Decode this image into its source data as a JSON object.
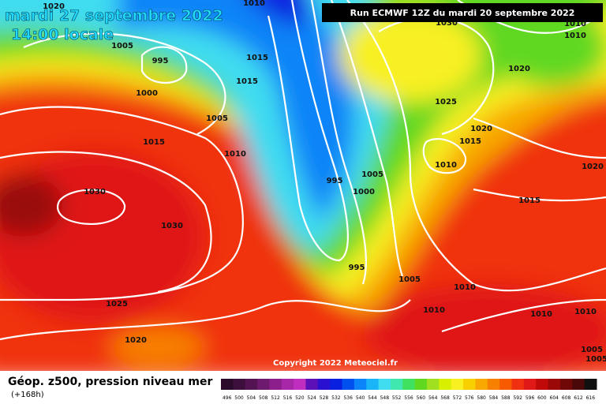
{
  "header": {
    "date": "mardi 27 septembre 2022",
    "time": "14:00 locale",
    "run": "Run ECMWF 12Z du mardi 20 septembre 2022"
  },
  "copyright": "Copyright 2022 Meteociel.fr",
  "footer": {
    "title": "Géop. z500, pression niveau mer",
    "lead": "(+168h)"
  },
  "isobar_labels": [
    "1020",
    "1010",
    "1005",
    "995",
    "1015",
    "1015",
    "1000",
    "1005",
    "1015",
    "1010",
    "1030",
    "1030",
    "1025",
    "1020",
    "995",
    "1000",
    "1005",
    "995",
    "1005",
    "1010",
    "1010",
    "1030",
    "1010",
    "1010",
    "1020",
    "1025",
    "1020",
    "1015",
    "1010",
    "1020",
    "1015",
    "1010",
    "1010",
    "1005",
    "1005"
  ],
  "colorbar": [
    {
      "label": "496",
      "color": "#2b0b2b"
    },
    {
      "label": "500",
      "color": "#3d0f3d"
    },
    {
      "label": "504",
      "color": "#541454"
    },
    {
      "label": "508",
      "color": "#6e1a6e"
    },
    {
      "label": "512",
      "color": "#8c1f8c"
    },
    {
      "label": "516",
      "color": "#a826a8"
    },
    {
      "label": "520",
      "color": "#c02ec0"
    },
    {
      "label": "524",
      "color": "#5c10b8"
    },
    {
      "label": "528",
      "color": "#2a10d0"
    },
    {
      "label": "532",
      "color": "#0a20e0"
    },
    {
      "label": "536",
      "color": "#0050f0"
    },
    {
      "label": "540",
      "color": "#0a84f8"
    },
    {
      "label": "544",
      "color": "#1ab4f8"
    },
    {
      "label": "548",
      "color": "#40dcf0"
    },
    {
      "label": "552",
      "color": "#40e8b0"
    },
    {
      "label": "556",
      "color": "#40e060"
    },
    {
      "label": "560",
      "color": "#60d820"
    },
    {
      "label": "564",
      "color": "#a0e020"
    },
    {
      "label": "568",
      "color": "#d8f000"
    },
    {
      "label": "572",
      "color": "#f8f020"
    },
    {
      "label": "576",
      "color": "#f8d000"
    },
    {
      "label": "580",
      "color": "#f8a800"
    },
    {
      "label": "584",
      "color": "#f88000"
    },
    {
      "label": "588",
      "color": "#f85a00"
    },
    {
      "label": "592",
      "color": "#f03010"
    },
    {
      "label": "596",
      "color": "#e01818"
    },
    {
      "label": "600",
      "color": "#c00a0a"
    },
    {
      "label": "604",
      "color": "#9a0808"
    },
    {
      "label": "608",
      "color": "#700808"
    },
    {
      "label": "612",
      "color": "#4a0808"
    },
    {
      "label": "616",
      "color": "#101010"
    }
  ]
}
